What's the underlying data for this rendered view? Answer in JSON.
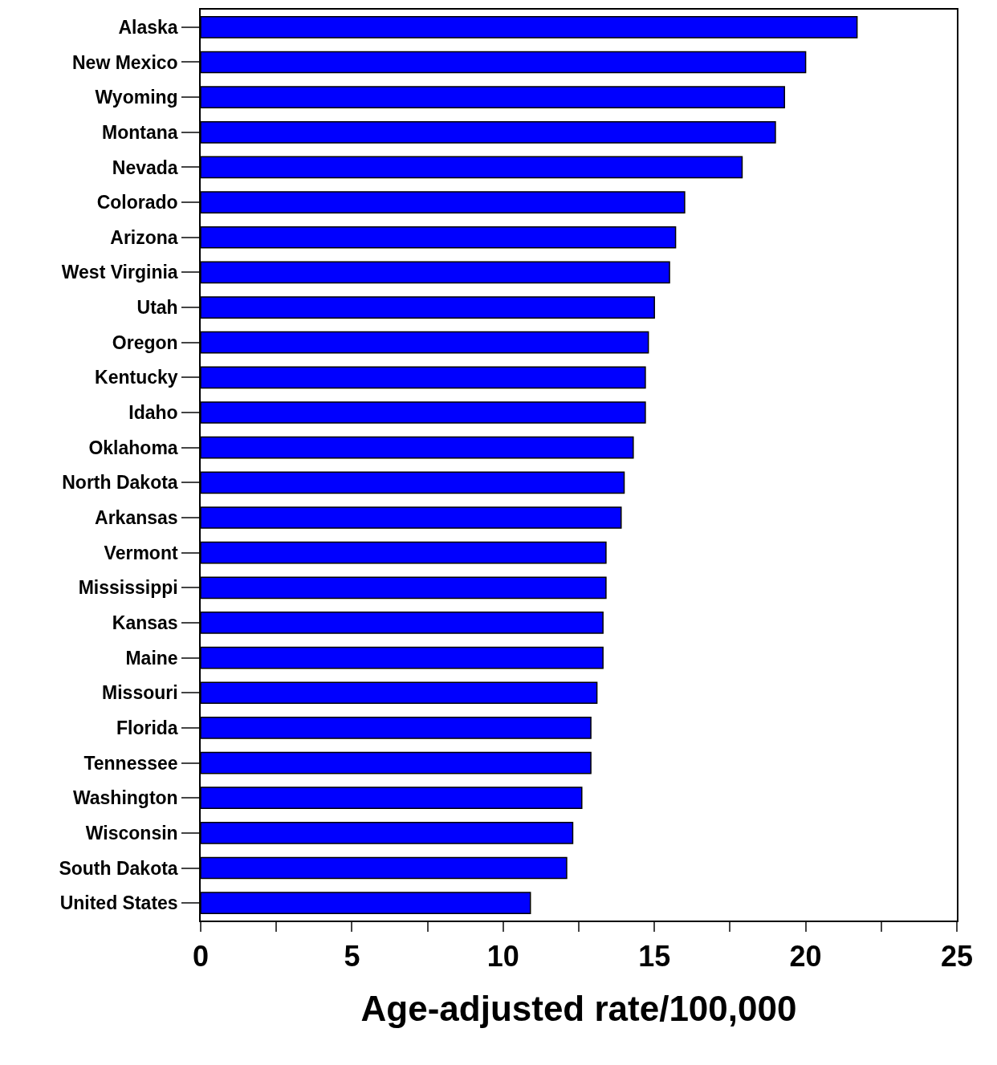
{
  "chart_data": {
    "type": "bar",
    "orientation": "horizontal",
    "xlabel": "Age-adjusted rate/100,000",
    "categories": [
      "Alaska",
      "New Mexico",
      "Wyoming",
      "Montana",
      "Nevada",
      "Colorado",
      "Arizona",
      "West Virginia",
      "Utah",
      "Oregon",
      "Kentucky",
      "Idaho",
      "Oklahoma",
      "North Dakota",
      "Arkansas",
      "Vermont",
      "Mississippi",
      "Kansas",
      "Maine",
      "Missouri",
      "Florida",
      "Tennessee",
      "Washington",
      "Wisconsin",
      "South Dakota",
      "United States"
    ],
    "values": [
      21.7,
      20.0,
      19.3,
      19.0,
      17.9,
      16.0,
      15.7,
      15.5,
      15.0,
      14.8,
      14.7,
      14.7,
      14.3,
      14.0,
      13.9,
      13.4,
      13.4,
      13.3,
      13.3,
      13.1,
      12.9,
      12.9,
      12.6,
      12.3,
      12.1,
      10.9
    ],
    "color": "#0000ff",
    "xlim": [
      0,
      25
    ],
    "xticks": [
      0,
      {
        "value": 2.5,
        "label": null
      },
      5,
      {
        "value": 7.5,
        "label": null
      },
      10,
      {
        "value": 12.5,
        "label": null
      },
      15,
      {
        "value": 17.5,
        "label": null
      },
      20,
      {
        "value": 22.5,
        "label": null
      },
      25
    ],
    "legend": false
  }
}
